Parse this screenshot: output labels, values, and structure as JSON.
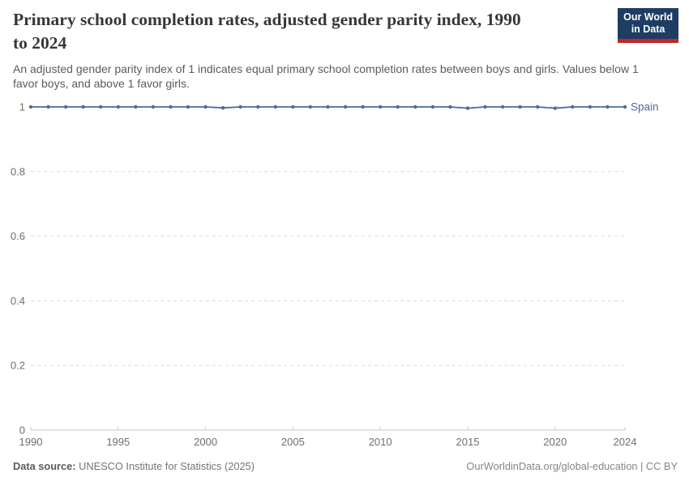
{
  "header": {
    "title_lines": [
      "Primary school completion rates, adjusted gender parity index, 1990",
      "to 2024"
    ],
    "subtitle": "An adjusted gender parity index of 1 indicates equal primary school completion rates between boys and girls. Values below 1 favor boys, and above 1 favor girls.",
    "logo": {
      "line1": "Our World",
      "line2": "in Data"
    }
  },
  "chart_data": {
    "type": "line",
    "title": "Primary school completion rates, adjusted gender parity index, 1990 to 2024",
    "x": [
      1990,
      1991,
      1992,
      1993,
      1994,
      1995,
      1996,
      1997,
      1998,
      1999,
      2000,
      2001,
      2002,
      2003,
      2004,
      2005,
      2006,
      2007,
      2008,
      2009,
      2010,
      2011,
      2012,
      2013,
      2014,
      2015,
      2016,
      2017,
      2018,
      2019,
      2020,
      2021,
      2022,
      2023,
      2024
    ],
    "series": [
      {
        "name": "Spain",
        "color": "#4C6A9C",
        "values": [
          1,
          1,
          1,
          1,
          1,
          1,
          1,
          1,
          1,
          1,
          1,
          0.997,
          1,
          1,
          1,
          1,
          1,
          1,
          1,
          1,
          1,
          1,
          1,
          1,
          1,
          0.996,
          1,
          1,
          1,
          1,
          0.996,
          1,
          1,
          1,
          1
        ]
      }
    ],
    "x_ticks": [
      1990,
      1995,
      2000,
      2005,
      2010,
      2015,
      2020,
      2024
    ],
    "y_ticks": [
      0,
      0.2,
      0.4,
      0.6,
      0.8,
      1
    ],
    "xlim": [
      1990,
      2024
    ],
    "ylim": [
      0,
      1
    ],
    "grid": "horizontal-dashed",
    "legend": "line-end-label"
  },
  "footer": {
    "datasource_label": "Data source:",
    "datasource_value": "UNESCO Institute for Statistics (2025)",
    "credit": "OurWorldinData.org/global-education | CC BY"
  },
  "colors": {
    "series": "#4C6A9C",
    "gridline": "#dcdcdc",
    "axis": "#c8c8c8",
    "tick_label": "#6e6e6e",
    "logo_bg": "#1d3d63",
    "logo_accent": "#c0262d"
  }
}
